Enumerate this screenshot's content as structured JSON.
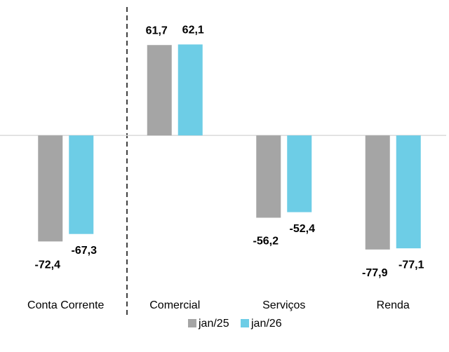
{
  "chart_data": {
    "type": "bar",
    "categories": [
      "Conta Corrente",
      "Comercial",
      "Serviços",
      "Renda"
    ],
    "series": [
      {
        "name": "jan/25",
        "color": "#a5a5a5",
        "values": [
          -72.4,
          61.7,
          -56.2,
          -77.9
        ],
        "value_labels": [
          "-72,4",
          "61,7",
          "-56,2",
          "-77,9"
        ]
      },
      {
        "name": "jan/26",
        "color": "#6dcde6",
        "values": [
          -67.3,
          62.1,
          -52.4,
          -77.1
        ],
        "value_labels": [
          "-67,3",
          "62,1",
          "-52,4",
          "-77,1"
        ]
      }
    ],
    "ylim": [
      -100,
      80
    ]
  }
}
